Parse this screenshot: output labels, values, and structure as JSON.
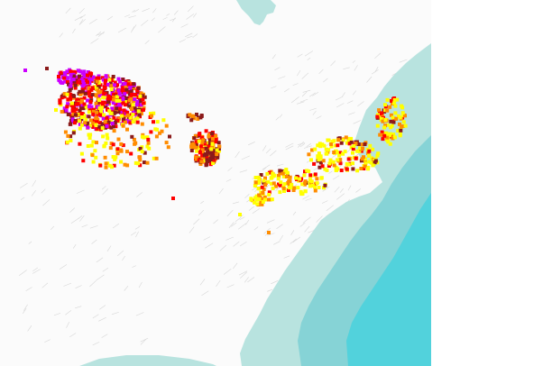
{
  "map": {
    "colors": {
      "background": "#ffffff",
      "land": "#fbfbfb",
      "relief": "#d6d6d6",
      "water_shallow": "#b8e3df",
      "water_mid": "#86d3d6",
      "water_deep": "#52d2dc"
    },
    "features": [
      "great-lakes-region-observations",
      "northeast-appalachian-observations",
      "atlantic-ocean",
      "hudson-bay-inlet"
    ],
    "observation_palette": [
      "#ffff00",
      "#ffd700",
      "#ff8c00",
      "#ff4500",
      "#ff0000",
      "#b22222",
      "#8b1a1a",
      "#cc00ff",
      "#ff00cc"
    ],
    "density_colors": {
      "low": "#ffff00",
      "medium": "#ff8c00",
      "high": "#ff0000",
      "very_high": "#8b1a1a",
      "extreme": "#cc00ff"
    }
  }
}
